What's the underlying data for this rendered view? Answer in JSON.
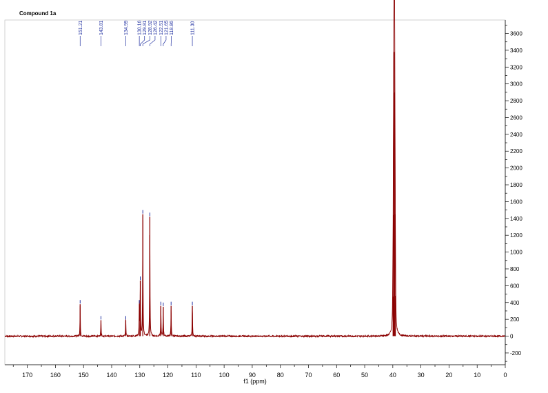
{
  "chart_data": {
    "type": "line",
    "title": "Compound 1a",
    "xlabel": "f1 (ppm)",
    "ylabel": "",
    "xlim": [
      178,
      0
    ],
    "ylim": [
      -340,
      3760
    ],
    "x_ticks": [
      "170",
      "160",
      "150",
      "140",
      "130",
      "120",
      "110",
      "100",
      "90",
      "80",
      "70",
      "60",
      "50",
      "40",
      "30",
      "20",
      "10",
      "0"
    ],
    "y_ticks": [
      "3600",
      "3400",
      "3200",
      "3000",
      "2800",
      "2600",
      "2400",
      "2200",
      "2000",
      "1800",
      "1600",
      "1400",
      "1200",
      "1000",
      "800",
      "600",
      "400",
      "200",
      "0",
      "-200"
    ],
    "peak_labels": [
      "151.21",
      "143.81",
      "134.99",
      "130.16",
      "129.81",
      "128.92",
      "126.42",
      "122.51",
      "121.65",
      "118.86",
      "111.30"
    ],
    "peaks": [
      {
        "x": 151.21,
        "y": 380
      },
      {
        "x": 143.81,
        "y": 190
      },
      {
        "x": 134.99,
        "y": 190
      },
      {
        "x": 130.16,
        "y": 380
      },
      {
        "x": 129.81,
        "y": 660
      },
      {
        "x": 128.92,
        "y": 1450
      },
      {
        "x": 126.42,
        "y": 1420
      },
      {
        "x": 122.51,
        "y": 360
      },
      {
        "x": 121.65,
        "y": 350
      },
      {
        "x": 118.86,
        "y": 360
      },
      {
        "x": 111.3,
        "y": 360
      }
    ],
    "solvent_peaks": [
      {
        "x": 39.5,
        "y": 3380
      },
      {
        "x": 39.35,
        "y": 2900
      },
      {
        "x": 39.65,
        "y": 2890
      },
      {
        "x": 39.2,
        "y": 1450
      },
      {
        "x": 39.8,
        "y": 1440
      },
      {
        "x": 39.05,
        "y": 480
      },
      {
        "x": 39.95,
        "y": 470
      }
    ],
    "grid": false,
    "colors": {
      "spectrum": "#8b0000",
      "peak_label": "#1f2fa0",
      "axis": "#000000"
    }
  }
}
